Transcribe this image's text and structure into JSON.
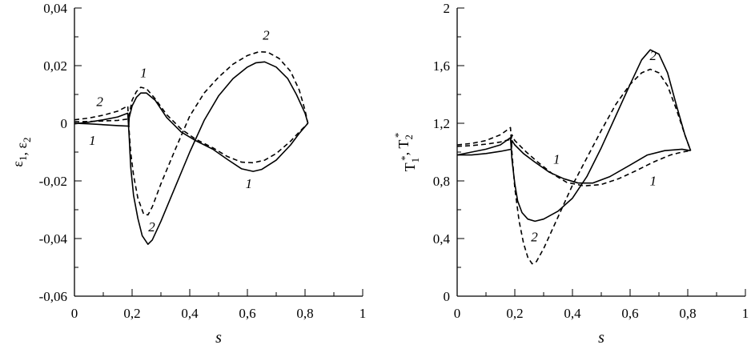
{
  "chart_data": [
    {
      "type": "line",
      "xlabel": "s",
      "ylabel": "ε1, ε2",
      "ylabel_parts": [
        {
          "text": "ε",
          "sub": "1"
        },
        {
          "text": ", ε",
          "sub": "2"
        }
      ],
      "xlim": [
        0,
        1
      ],
      "ylim": [
        -0.06,
        0.04
      ],
      "x_ticks": [
        0,
        0.2,
        0.4,
        0.6,
        0.8,
        1
      ],
      "x_tick_labels": [
        "0",
        "0,2",
        "0,4",
        "0,6",
        "0,8",
        "1"
      ],
      "y_ticks": [
        -0.06,
        -0.04,
        -0.02,
        0,
        0.02,
        0.04
      ],
      "y_tick_labels": [
        "-0,06",
        "-0,04",
        "-0,02",
        "0",
        "0,02",
        "0,04"
      ],
      "grid": false,
      "series": [
        {
          "label": "1",
          "style": "solid",
          "points": [
            [
              0,
              0
            ],
            [
              0.05,
              -0.0002
            ],
            [
              0.1,
              -0.0005
            ],
            [
              0.15,
              -0.0008
            ],
            [
              0.188,
              -0.001
            ],
            [
              0.19,
              0.002
            ],
            [
              0.2,
              0.006
            ],
            [
              0.215,
              0.009
            ],
            [
              0.23,
              0.0105
            ],
            [
              0.25,
              0.0105
            ],
            [
              0.28,
              0.008
            ],
            [
              0.32,
              0.002
            ],
            [
              0.37,
              -0.003
            ],
            [
              0.42,
              -0.006
            ],
            [
              0.48,
              -0.009
            ],
            [
              0.53,
              -0.0125
            ],
            [
              0.58,
              -0.0158
            ],
            [
              0.62,
              -0.0167
            ],
            [
              0.65,
              -0.016
            ],
            [
              0.7,
              -0.0128
            ],
            [
              0.75,
              -0.0075
            ],
            [
              0.78,
              -0.0035
            ],
            [
              0.81,
              0
            ]
          ]
        },
        {
          "label": "1",
          "style": "dashed",
          "points": [
            [
              0,
              0.0005
            ],
            [
              0.05,
              0.0006
            ],
            [
              0.1,
              0.0008
            ],
            [
              0.15,
              0.001
            ],
            [
              0.188,
              0.0015
            ],
            [
              0.19,
              0.003
            ],
            [
              0.2,
              0.008
            ],
            [
              0.215,
              0.011
            ],
            [
              0.23,
              0.0125
            ],
            [
              0.25,
              0.012
            ],
            [
              0.28,
              0.0085
            ],
            [
              0.32,
              0.003
            ],
            [
              0.37,
              -0.002
            ],
            [
              0.42,
              -0.0055
            ],
            [
              0.48,
              -0.0085
            ],
            [
              0.53,
              -0.0115
            ],
            [
              0.58,
              -0.0135
            ],
            [
              0.62,
              -0.0137
            ],
            [
              0.66,
              -0.0128
            ],
            [
              0.7,
              -0.0105
            ],
            [
              0.75,
              -0.0062
            ],
            [
              0.78,
              -0.003
            ],
            [
              0.81,
              0
            ]
          ]
        },
        {
          "label": "2",
          "style": "solid",
          "points": [
            [
              0,
              -0.0002
            ],
            [
              0.05,
              0.0004
            ],
            [
              0.1,
              0.0012
            ],
            [
              0.15,
              0.0022
            ],
            [
              0.185,
              0.0035
            ],
            [
              0.19,
              -0.005
            ],
            [
              0.195,
              -0.015
            ],
            [
              0.205,
              -0.025
            ],
            [
              0.22,
              -0.033
            ],
            [
              0.235,
              -0.039
            ],
            [
              0.255,
              -0.042
            ],
            [
              0.27,
              -0.0405
            ],
            [
              0.3,
              -0.034
            ],
            [
              0.35,
              -0.022
            ],
            [
              0.4,
              -0.01
            ],
            [
              0.45,
              0.001
            ],
            [
              0.5,
              0.0095
            ],
            [
              0.55,
              0.0155
            ],
            [
              0.6,
              0.0195
            ],
            [
              0.63,
              0.021
            ],
            [
              0.66,
              0.0213
            ],
            [
              0.7,
              0.0195
            ],
            [
              0.74,
              0.0155
            ],
            [
              0.77,
              0.01
            ],
            [
              0.8,
              0.0035
            ],
            [
              0.81,
              0
            ]
          ]
        },
        {
          "label": "2",
          "style": "dashed",
          "points": [
            [
              0,
              0.0012
            ],
            [
              0.05,
              0.0018
            ],
            [
              0.1,
              0.0028
            ],
            [
              0.15,
              0.0042
            ],
            [
              0.185,
              0.006
            ],
            [
              0.19,
              -0.003
            ],
            [
              0.195,
              -0.01
            ],
            [
              0.205,
              -0.018
            ],
            [
              0.22,
              -0.026
            ],
            [
              0.24,
              -0.0315
            ],
            [
              0.255,
              -0.0318
            ],
            [
              0.27,
              -0.029
            ],
            [
              0.3,
              -0.021
            ],
            [
              0.35,
              -0.009
            ],
            [
              0.4,
              0.0025
            ],
            [
              0.45,
              0.0105
            ],
            [
              0.5,
              0.016
            ],
            [
              0.55,
              0.0205
            ],
            [
              0.6,
              0.0235
            ],
            [
              0.64,
              0.0248
            ],
            [
              0.67,
              0.0247
            ],
            [
              0.71,
              0.0225
            ],
            [
              0.75,
              0.018
            ],
            [
              0.78,
              0.0115
            ],
            [
              0.8,
              0.0045
            ],
            [
              0.81,
              0
            ]
          ]
        }
      ],
      "annotations": [
        {
          "text": "1",
          "x": 0.24,
          "y": 0.016
        },
        {
          "text": "2",
          "x": 0.665,
          "y": 0.029
        },
        {
          "text": "2",
          "x": 0.088,
          "y": 0.006
        },
        {
          "text": "1",
          "x": 0.062,
          "y": -0.0075
        },
        {
          "text": "2",
          "x": 0.268,
          "y": -0.0375
        },
        {
          "text": "1",
          "x": 0.605,
          "y": -0.0225
        }
      ]
    },
    {
      "type": "line",
      "xlabel": "s",
      "ylabel": "T1*, T2*",
      "ylabel_parts": [
        {
          "text": "T",
          "sub": "1",
          "sup": "*"
        },
        {
          "text": ", T",
          "sub": "2",
          "sup": "*"
        }
      ],
      "xlim": [
        0,
        1
      ],
      "ylim": [
        0,
        2
      ],
      "x_ticks": [
        0,
        0.2,
        0.4,
        0.6,
        0.8,
        1
      ],
      "x_tick_labels": [
        "0",
        "0,2",
        "0,4",
        "0,6",
        "0,8",
        "1"
      ],
      "y_ticks": [
        0,
        0.4,
        0.8,
        1.2,
        1.6,
        2
      ],
      "y_tick_labels": [
        "0",
        "0,4",
        "0,8",
        "1,2",
        "1,6",
        "2"
      ],
      "grid": false,
      "series": [
        {
          "label": "1",
          "style": "solid",
          "points": [
            [
              0,
              0.98
            ],
            [
              0.05,
              0.98
            ],
            [
              0.1,
              0.99
            ],
            [
              0.15,
              1.005
            ],
            [
              0.188,
              1.02
            ],
            [
              0.19,
              1.08
            ],
            [
              0.2,
              1.05
            ],
            [
              0.23,
              0.99
            ],
            [
              0.27,
              0.93
            ],
            [
              0.32,
              0.86
            ],
            [
              0.37,
              0.815
            ],
            [
              0.42,
              0.785
            ],
            [
              0.47,
              0.785
            ],
            [
              0.53,
              0.83
            ],
            [
              0.6,
              0.91
            ],
            [
              0.66,
              0.98
            ],
            [
              0.72,
              1.01
            ],
            [
              0.78,
              1.02
            ],
            [
              0.81,
              1.01
            ]
          ]
        },
        {
          "label": "1",
          "style": "dashed",
          "points": [
            [
              0,
              1.04
            ],
            [
              0.05,
              1.045
            ],
            [
              0.1,
              1.055
            ],
            [
              0.15,
              1.07
            ],
            [
              0.188,
              1.09
            ],
            [
              0.19,
              1.12
            ],
            [
              0.2,
              1.08
            ],
            [
              0.24,
              1.0
            ],
            [
              0.28,
              0.93
            ],
            [
              0.33,
              0.85
            ],
            [
              0.38,
              0.79
            ],
            [
              0.44,
              0.765
            ],
            [
              0.5,
              0.775
            ],
            [
              0.56,
              0.815
            ],
            [
              0.62,
              0.87
            ],
            [
              0.68,
              0.93
            ],
            [
              0.74,
              0.98
            ],
            [
              0.78,
              1.0
            ],
            [
              0.81,
              1.01
            ]
          ]
        },
        {
          "label": "2",
          "style": "solid",
          "points": [
            [
              0,
              0.98
            ],
            [
              0.05,
              1.0
            ],
            [
              0.1,
              1.02
            ],
            [
              0.15,
              1.05
            ],
            [
              0.185,
              1.1
            ],
            [
              0.19,
              0.95
            ],
            [
              0.2,
              0.78
            ],
            [
              0.21,
              0.66
            ],
            [
              0.225,
              0.58
            ],
            [
              0.245,
              0.535
            ],
            [
              0.27,
              0.52
            ],
            [
              0.3,
              0.535
            ],
            [
              0.35,
              0.59
            ],
            [
              0.4,
              0.68
            ],
            [
              0.45,
              0.83
            ],
            [
              0.5,
              1.03
            ],
            [
              0.55,
              1.25
            ],
            [
              0.6,
              1.47
            ],
            [
              0.64,
              1.64
            ],
            [
              0.67,
              1.71
            ],
            [
              0.7,
              1.68
            ],
            [
              0.73,
              1.55
            ],
            [
              0.76,
              1.33
            ],
            [
              0.79,
              1.12
            ],
            [
              0.81,
              1.01
            ]
          ]
        },
        {
          "label": "2",
          "style": "dashed",
          "points": [
            [
              0,
              1.05
            ],
            [
              0.05,
              1.06
            ],
            [
              0.1,
              1.08
            ],
            [
              0.15,
              1.12
            ],
            [
              0.185,
              1.17
            ],
            [
              0.19,
              1.0
            ],
            [
              0.2,
              0.75
            ],
            [
              0.215,
              0.52
            ],
            [
              0.23,
              0.37
            ],
            [
              0.245,
              0.27
            ],
            [
              0.26,
              0.225
            ],
            [
              0.275,
              0.24
            ],
            [
              0.3,
              0.33
            ],
            [
              0.35,
              0.55
            ],
            [
              0.4,
              0.77
            ],
            [
              0.45,
              0.96
            ],
            [
              0.5,
              1.15
            ],
            [
              0.55,
              1.33
            ],
            [
              0.6,
              1.47
            ],
            [
              0.64,
              1.55
            ],
            [
              0.67,
              1.575
            ],
            [
              0.7,
              1.55
            ],
            [
              0.73,
              1.46
            ],
            [
              0.76,
              1.3
            ],
            [
              0.79,
              1.12
            ],
            [
              0.81,
              1.01
            ]
          ]
        }
      ],
      "annotations": [
        {
          "text": "1",
          "x": 0.345,
          "y": 0.92
        },
        {
          "text": "1",
          "x": 0.68,
          "y": 0.77
        },
        {
          "text": "2",
          "x": 0.68,
          "y": 1.64
        },
        {
          "text": "2",
          "x": 0.268,
          "y": 0.38
        }
      ]
    }
  ]
}
